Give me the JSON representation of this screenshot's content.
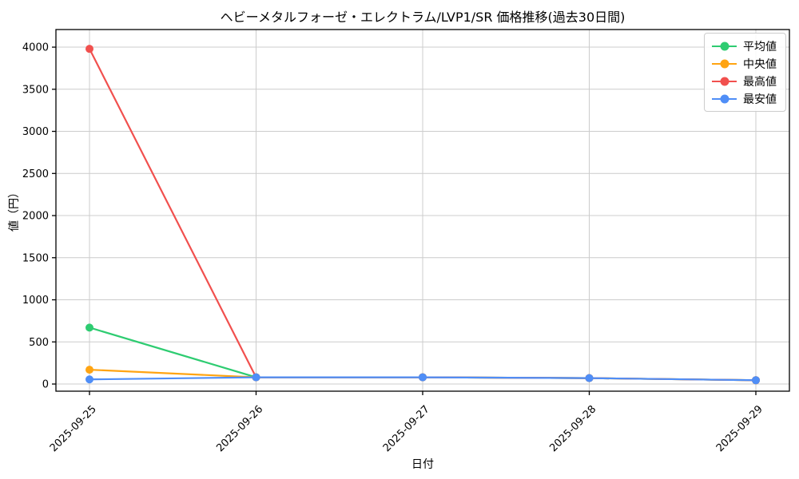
{
  "chart_data": {
    "type": "line",
    "title": "ヘビーメタルフォーゼ・エレクトラム/LVP1/SR 価格推移(過去30日間)",
    "xlabel": "日付",
    "ylabel": "値（円）",
    "x": [
      "2025-09-25",
      "2025-09-26",
      "2025-09-27",
      "2025-09-28",
      "2025-09-29"
    ],
    "series": [
      {
        "name": "平均値",
        "color": "#2ecc71",
        "values": [
          670,
          80,
          80,
          70,
          45
        ]
      },
      {
        "name": "中央値",
        "color": "#ffa412",
        "values": [
          170,
          80,
          80,
          70,
          45
        ]
      },
      {
        "name": "最高値",
        "color": "#f1504e",
        "values": [
          3980,
          80,
          80,
          70,
          45
        ]
      },
      {
        "name": "最安値",
        "color": "#4f8ef7",
        "values": [
          55,
          80,
          80,
          70,
          45
        ]
      }
    ],
    "ylim": [
      0,
      4000
    ],
    "yticks": [
      0,
      500,
      1000,
      1500,
      2000,
      2500,
      3000,
      3500,
      4000
    ],
    "x_tick_rotation_deg": 45,
    "grid": true,
    "grid_color": "#cccccc",
    "axis_color": "#000000",
    "background_color": "#ffffff",
    "legend_position": "upper right"
  }
}
